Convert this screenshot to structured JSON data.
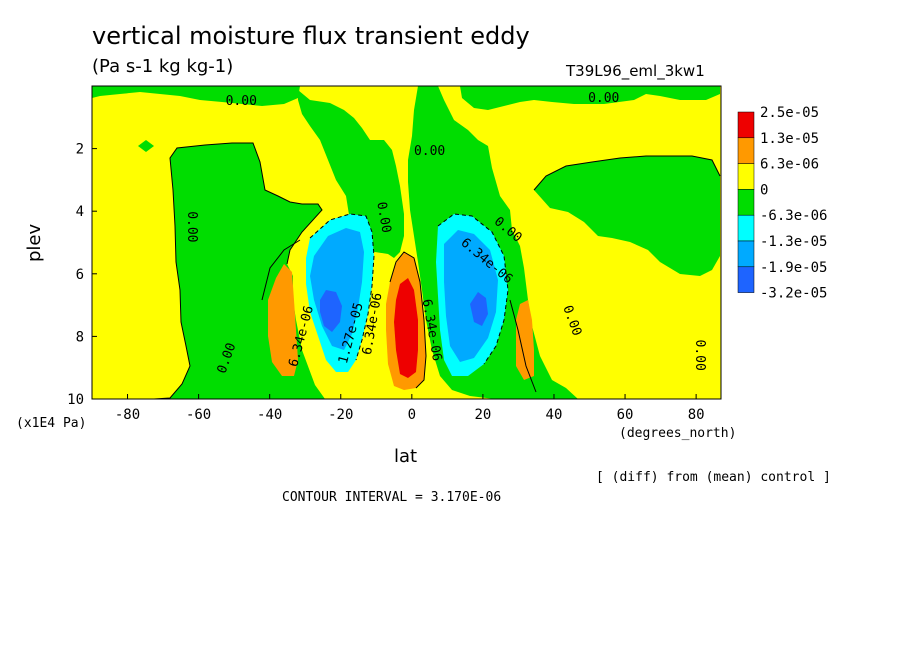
{
  "chart_data": {
    "type": "heatmap",
    "title": "vertical moisture flux transient eddy",
    "units": "(Pa s-1 kg kg-1)",
    "run_label": "T39L96_eml_3kw1",
    "xlabel": "lat",
    "x_unit": "(degrees_north)",
    "ylabel": "plev",
    "y_unit": "(x1E4 Pa)",
    "xlim": [
      -90,
      87
    ],
    "ylim": [
      0,
      10
    ],
    "y_inverted": true,
    "x_ticks": [
      {
        "v": -80,
        "t": "-80"
      },
      {
        "v": -60,
        "t": "-60"
      },
      {
        "v": -40,
        "t": "-40"
      },
      {
        "v": -20,
        "t": "-20"
      },
      {
        "v": 0,
        "t": "0"
      },
      {
        "v": 20,
        "t": "20"
      },
      {
        "v": 40,
        "t": "40"
      },
      {
        "v": 60,
        "t": "60"
      },
      {
        "v": 80,
        "t": "80"
      }
    ],
    "y_ticks": [
      {
        "v": 2,
        "t": "2"
      },
      {
        "v": 4,
        "t": "4"
      },
      {
        "v": 6,
        "t": "6"
      },
      {
        "v": 8,
        "t": "8"
      },
      {
        "v": 10,
        "t": "10"
      }
    ],
    "contour_interval": "CONTOUR INTERVAL = 3.170E-06",
    "footnote": "[ (diff) from (mean) control ]",
    "legend": {
      "placement": "right",
      "labels": [
        "2.5e-05",
        "1.3e-05",
        "6.3e-06",
        "0",
        "-6.3e-06",
        "-1.3e-05",
        "-1.9e-05",
        "-3.2e-05"
      ],
      "colors": [
        "#ee0000",
        "#ff9900",
        "#ffff00",
        "#00dd00",
        "#00ffff",
        "#00aaff",
        "#1e64ff"
      ]
    },
    "contour_labels": [
      {
        "text": "0.00",
        "lat": -48,
        "plev": 0.5,
        "rot": 0
      },
      {
        "text": "0.00",
        "lat": 54,
        "plev": 0.4,
        "rot": 0
      },
      {
        "text": "0.00",
        "lat": 5,
        "plev": 2.1,
        "rot": 0
      },
      {
        "text": "0.00",
        "lat": -62,
        "plev": 4.5,
        "rot": 90
      },
      {
        "text": "0.00",
        "lat": -8,
        "plev": 4.2,
        "rot": 80
      },
      {
        "text": "0.00",
        "lat": 27,
        "plev": 4.6,
        "rot": 40
      },
      {
        "text": "0.00",
        "lat": -52,
        "plev": 8.7,
        "rot": -70
      },
      {
        "text": "0.00",
        "lat": 45,
        "plev": 7.5,
        "rot": 70
      },
      {
        "text": "0.00",
        "lat": 81,
        "plev": 8.6,
        "rot": 90
      },
      {
        "text": "6.34e-06",
        "lat": 21,
        "plev": 5.6,
        "rot": 40
      },
      {
        "text": "6.34e-06",
        "lat": -31,
        "plev": 8.0,
        "rot": -75
      },
      {
        "text": "1.27e-05",
        "lat": -17,
        "plev": 7.9,
        "rot": -75
      },
      {
        "text": "6.34e-06",
        "lat": -11,
        "plev": 7.6,
        "rot": -80
      },
      {
        "text": "6.34e-06",
        "lat": 5.5,
        "plev": 7.8,
        "rot": 80
      }
    ]
  }
}
